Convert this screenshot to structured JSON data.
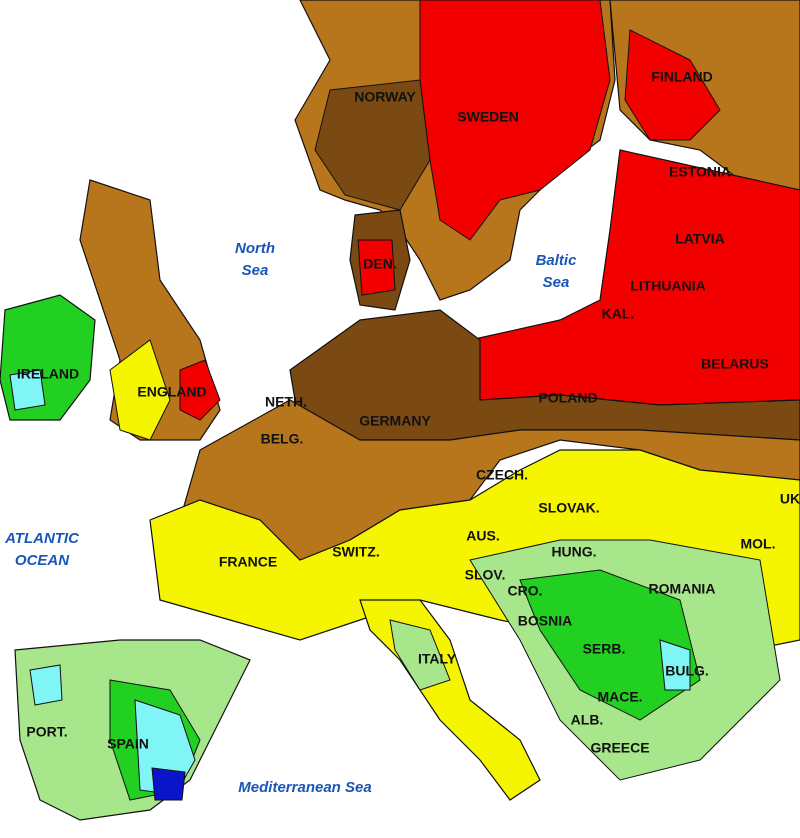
{
  "countries": [
    {
      "label": "NORWAY"
    },
    {
      "label": "SWEDEN"
    },
    {
      "label": "FINLAND"
    },
    {
      "label": "ESTONIA"
    },
    {
      "label": "LATVIA"
    },
    {
      "label": "LITHUANIA"
    },
    {
      "label": "KAL."
    },
    {
      "label": "BELARUS"
    },
    {
      "label": "POLAND"
    },
    {
      "label": "DEN."
    },
    {
      "label": "IRELAND"
    },
    {
      "label": "ENGLAND"
    },
    {
      "label": "NETH."
    },
    {
      "label": "BELG."
    },
    {
      "label": "GERMANY"
    },
    {
      "label": "CZECH."
    },
    {
      "label": "SLOVAK."
    },
    {
      "label": "FRANCE"
    },
    {
      "label": "SWITZ."
    },
    {
      "label": "AUS."
    },
    {
      "label": "HUNG."
    },
    {
      "label": "MOL."
    },
    {
      "label": "UK"
    },
    {
      "label": "SLOV."
    },
    {
      "label": "CRO."
    },
    {
      "label": "ROMANIA"
    },
    {
      "label": "BOSNIA"
    },
    {
      "label": "SERB."
    },
    {
      "label": "BULG."
    },
    {
      "label": "ITALY"
    },
    {
      "label": "PORT."
    },
    {
      "label": "SPAIN"
    },
    {
      "label": "MACE."
    },
    {
      "label": "ALB."
    },
    {
      "label": "GREECE"
    }
  ],
  "seas": [
    {
      "lines": [
        "North",
        "Sea"
      ]
    },
    {
      "lines": [
        "Baltic",
        "Sea"
      ]
    },
    {
      "lines": [
        "ATLANTIC",
        "OCEAN"
      ]
    },
    {
      "lines": [
        "Mediterranean Sea"
      ]
    }
  ]
}
